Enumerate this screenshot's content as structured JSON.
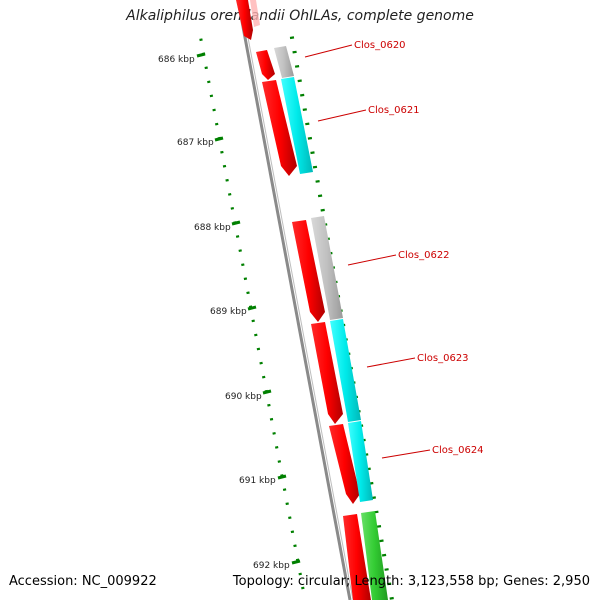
{
  "title": "Alkaliphilus oremlandii OhILAs, complete genome",
  "footer": {
    "accession": "Accession: NC_009922",
    "summary": "Topology: circular; Length: 3,123,558 bp; Genes: 2,950"
  },
  "axis": {
    "ticks": [
      "686 kbp",
      "687 kbp",
      "688 kbp",
      "689 kbp",
      "690 kbp",
      "691 kbp",
      "692 kbp"
    ]
  },
  "genes": [
    {
      "label": "Clos_0620",
      "strand_color": "#c0c0c0"
    },
    {
      "label": "Clos_0621",
      "strand_color": "#00e5e5"
    },
    {
      "label": "Clos_0622",
      "strand_color": "#c0c0c0"
    },
    {
      "label": "Clos_0623",
      "strand_color": "#00e5e5"
    },
    {
      "label": "Clos_0624",
      "strand_color": "#00e5e5"
    }
  ],
  "colors": {
    "cds": "#ff0000",
    "label": "#cc0000",
    "tick": "#008000",
    "backbone": "#808080",
    "green_feature": "#33cc33"
  }
}
